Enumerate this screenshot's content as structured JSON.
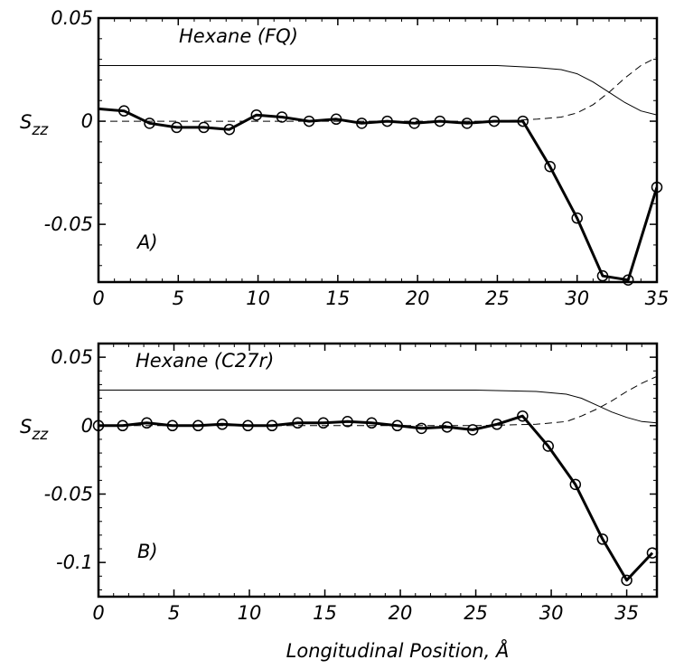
{
  "chart_data": [
    {
      "type": "line",
      "title": "Hexane (FQ)",
      "panel_label": "A)",
      "ylabel": "S",
      "ylabel_sub": "zz",
      "xlim": [
        0,
        35
      ],
      "ylim": [
        -0.078,
        0.05
      ],
      "xticks": [
        0,
        5,
        10,
        15,
        20,
        25,
        30,
        35
      ],
      "xtick_labels": [
        "0",
        "5",
        "10",
        "15",
        "20",
        "25",
        "30",
        "35"
      ],
      "yticks": [
        0.05,
        0,
        -0.05
      ],
      "ytick_labels": [
        "0.05",
        "0",
        "-0.05"
      ],
      "grid": false,
      "series": [
        {
          "style": "thick-line-with-circles",
          "x": [
            0,
            1.6,
            3.2,
            4.9,
            6.6,
            8.2,
            9.9,
            11.5,
            13.2,
            14.9,
            16.5,
            18.1,
            19.8,
            21.4,
            23.1,
            24.8,
            26.6,
            28.3,
            30.0,
            31.6,
            33.2,
            35.0
          ],
          "y": [
            0.006,
            0.005,
            -0.001,
            -0.003,
            -0.003,
            -0.004,
            0.003,
            0.002,
            0.0,
            0.001,
            -0.001,
            0.0,
            -0.001,
            0.0,
            -0.001,
            0.0,
            0.0,
            -0.022,
            -0.047,
            -0.075,
            -0.077,
            -0.032
          ],
          "markers": [
            false,
            true,
            true,
            true,
            true,
            true,
            true,
            true,
            true,
            true,
            true,
            true,
            true,
            true,
            true,
            true,
            true,
            true,
            true,
            true,
            true,
            true
          ]
        },
        {
          "style": "thin-solid",
          "x": [
            0,
            5,
            10,
            15,
            20,
            25,
            27.5,
            29,
            30,
            31,
            32,
            33,
            34,
            35
          ],
          "y": [
            0.027,
            0.027,
            0.027,
            0.027,
            0.027,
            0.027,
            0.026,
            0.025,
            0.023,
            0.019,
            0.014,
            0.009,
            0.005,
            0.003
          ]
        },
        {
          "style": "thin-dashed",
          "x": [
            0,
            5,
            10,
            15,
            20,
            25,
            27.5,
            29,
            30,
            31,
            32,
            33,
            34,
            35
          ],
          "y": [
            0,
            0,
            0,
            0,
            0,
            0,
            0.001,
            0.002,
            0.004,
            0.008,
            0.014,
            0.021,
            0.027,
            0.031
          ]
        }
      ]
    },
    {
      "type": "line",
      "title": "Hexane (C27r)",
      "panel_label": "B)",
      "ylabel": "S",
      "ylabel_sub": "zz",
      "xlim": [
        0,
        37
      ],
      "ylim": [
        -0.125,
        0.06
      ],
      "xticks": [
        0,
        5,
        10,
        15,
        20,
        25,
        30,
        35
      ],
      "xtick_labels": [
        "0",
        "5",
        "10",
        "15",
        "20",
        "25",
        "30",
        "35"
      ],
      "yticks": [
        0.05,
        0,
        -0.05,
        -0.1
      ],
      "ytick_labels": [
        "0.05",
        "0",
        "-0.05",
        "-0.1"
      ],
      "grid": false,
      "series": [
        {
          "style": "thick-line-with-circles",
          "x": [
            0,
            1.6,
            3.2,
            4.9,
            6.6,
            8.2,
            9.9,
            11.5,
            13.2,
            14.9,
            16.5,
            18.1,
            19.8,
            21.4,
            23.1,
            24.8,
            26.4,
            28.1,
            29.8,
            31.6,
            33.4,
            35.0,
            36.7
          ],
          "y": [
            0.0,
            0.0,
            0.002,
            0.0,
            0.0,
            0.001,
            0.0,
            0.0,
            0.002,
            0.002,
            0.003,
            0.002,
            0.0,
            -0.002,
            -0.001,
            -0.003,
            0.001,
            0.007,
            -0.015,
            -0.043,
            -0.083,
            -0.113,
            -0.093
          ],
          "markers": [
            true,
            true,
            true,
            true,
            true,
            true,
            true,
            true,
            true,
            true,
            true,
            true,
            true,
            true,
            true,
            true,
            true,
            true,
            true,
            true,
            true,
            true,
            true
          ]
        },
        {
          "style": "thin-solid",
          "x": [
            0,
            5,
            10,
            15,
            20,
            25,
            29,
            31,
            32,
            33,
            34,
            35,
            36,
            37
          ],
          "y": [
            0.026,
            0.026,
            0.026,
            0.026,
            0.026,
            0.026,
            0.025,
            0.023,
            0.02,
            0.015,
            0.01,
            0.006,
            0.003,
            0.002
          ]
        },
        {
          "style": "thin-dashed",
          "x": [
            0,
            5,
            10,
            15,
            20,
            25,
            29,
            31,
            32,
            33,
            34,
            35,
            36,
            37
          ],
          "y": [
            0,
            0,
            0,
            0,
            0,
            0,
            0.001,
            0.003,
            0.007,
            0.012,
            0.018,
            0.025,
            0.031,
            0.036
          ]
        }
      ]
    }
  ],
  "shared_xlabel": "Longitudinal Position, Å"
}
